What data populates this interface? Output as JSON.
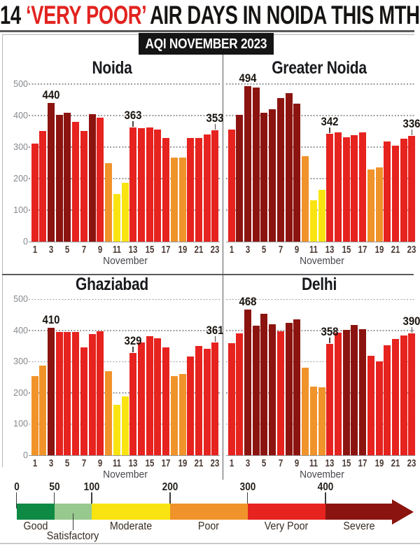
{
  "headline": {
    "prefix": "14",
    "highlight": "‘VERY POOR’",
    "suffix": " AIR DAYS IN NOIDA THIS MTH"
  },
  "badge": {
    "label": "AQI NOVEMBER 2023"
  },
  "axis": {
    "month_label": "November",
    "y_ticks": [
      0,
      100,
      200,
      300,
      400,
      500
    ],
    "x_tick_days": [
      1,
      3,
      5,
      7,
      9,
      11,
      13,
      15,
      17,
      19,
      21,
      23
    ]
  },
  "chart_data": [
    {
      "type": "bar",
      "title": "Noida",
      "xlabel": "November",
      "ylim": [
        0,
        500
      ],
      "x": [
        1,
        2,
        3,
        4,
        5,
        6,
        7,
        8,
        9,
        10,
        11,
        12,
        13,
        14,
        15,
        16,
        17,
        18,
        19,
        20,
        21,
        22,
        23
      ],
      "values": [
        312,
        352,
        440,
        402,
        410,
        380,
        352,
        405,
        394,
        248,
        152,
        186,
        363,
        360,
        362,
        356,
        330,
        266,
        266,
        328,
        330,
        340,
        353
      ],
      "annotations": [
        {
          "day": 3,
          "value": 440
        },
        {
          "day": 13,
          "value": 363
        },
        {
          "day": 23,
          "value": 353
        }
      ]
    },
    {
      "type": "bar",
      "title": "Greater Noida",
      "xlabel": "November",
      "ylim": [
        0,
        500
      ],
      "x": [
        1,
        2,
        3,
        4,
        5,
        6,
        7,
        8,
        9,
        10,
        11,
        12,
        13,
        14,
        15,
        16,
        17,
        18,
        19,
        20,
        21,
        22,
        23
      ],
      "values": [
        355,
        402,
        494,
        488,
        408,
        420,
        455,
        472,
        437,
        272,
        132,
        165,
        342,
        346,
        332,
        337,
        346,
        228,
        236,
        318,
        305,
        326,
        336
      ],
      "annotations": [
        {
          "day": 3,
          "value": 494
        },
        {
          "day": 13,
          "value": 342
        },
        {
          "day": 23,
          "value": 336
        }
      ]
    },
    {
      "type": "bar",
      "title": "Ghaziabad",
      "xlabel": "November",
      "ylim": [
        0,
        500
      ],
      "x": [
        1,
        2,
        3,
        4,
        5,
        6,
        7,
        8,
        9,
        10,
        11,
        12,
        13,
        14,
        15,
        16,
        17,
        18,
        19,
        20,
        21,
        22,
        23
      ],
      "values": [
        255,
        287,
        410,
        396,
        396,
        396,
        346,
        389,
        397,
        270,
        162,
        188,
        329,
        362,
        381,
        376,
        345,
        253,
        260,
        317,
        350,
        342,
        361
      ],
      "annotations": [
        {
          "day": 3,
          "value": 410
        },
        {
          "day": 13,
          "value": 329
        },
        {
          "day": 23,
          "value": 361
        }
      ]
    },
    {
      "type": "bar",
      "title": "Delhi",
      "xlabel": "November",
      "ylim": [
        0,
        500
      ],
      "x": [
        1,
        2,
        3,
        4,
        5,
        6,
        7,
        8,
        9,
        10,
        11,
        12,
        13,
        14,
        15,
        16,
        17,
        18,
        19,
        20,
        21,
        22,
        23
      ],
      "values": [
        360,
        392,
        468,
        415,
        453,
        420,
        397,
        425,
        435,
        280,
        220,
        218,
        358,
        393,
        403,
        418,
        405,
        318,
        302,
        352,
        372,
        385,
        390
      ],
      "annotations": [
        {
          "day": 3,
          "value": 468
        },
        {
          "day": 13,
          "value": 358
        },
        {
          "day": 23,
          "value": 390
        }
      ]
    }
  ],
  "aqi_scale": {
    "ticks": [
      0,
      50,
      100,
      200,
      300,
      400
    ],
    "categories": [
      {
        "label": "Good",
        "min": 0,
        "max": 50,
        "color": "#0e8a45"
      },
      {
        "label": "Satisfactory",
        "min": 50,
        "max": 100,
        "color": "#97c98e"
      },
      {
        "label": "Moderate",
        "min": 100,
        "max": 200,
        "color": "#f9e411"
      },
      {
        "label": "Poor",
        "min": 200,
        "max": 300,
        "color": "#f0932a"
      },
      {
        "label": "Very Poor",
        "min": 300,
        "max": 400,
        "color": "#e6231f"
      },
      {
        "label": "Severe",
        "min": 400,
        "max": 999,
        "color": "#8c1410"
      }
    ]
  },
  "colors": {
    "headline_red": "#e2231f",
    "severe": "#8c1410",
    "very_poor": "#e6231f",
    "poor": "#f0932a",
    "moderate": "#f9e411",
    "satisfactory": "#97c98e",
    "good": "#0e8a45"
  }
}
